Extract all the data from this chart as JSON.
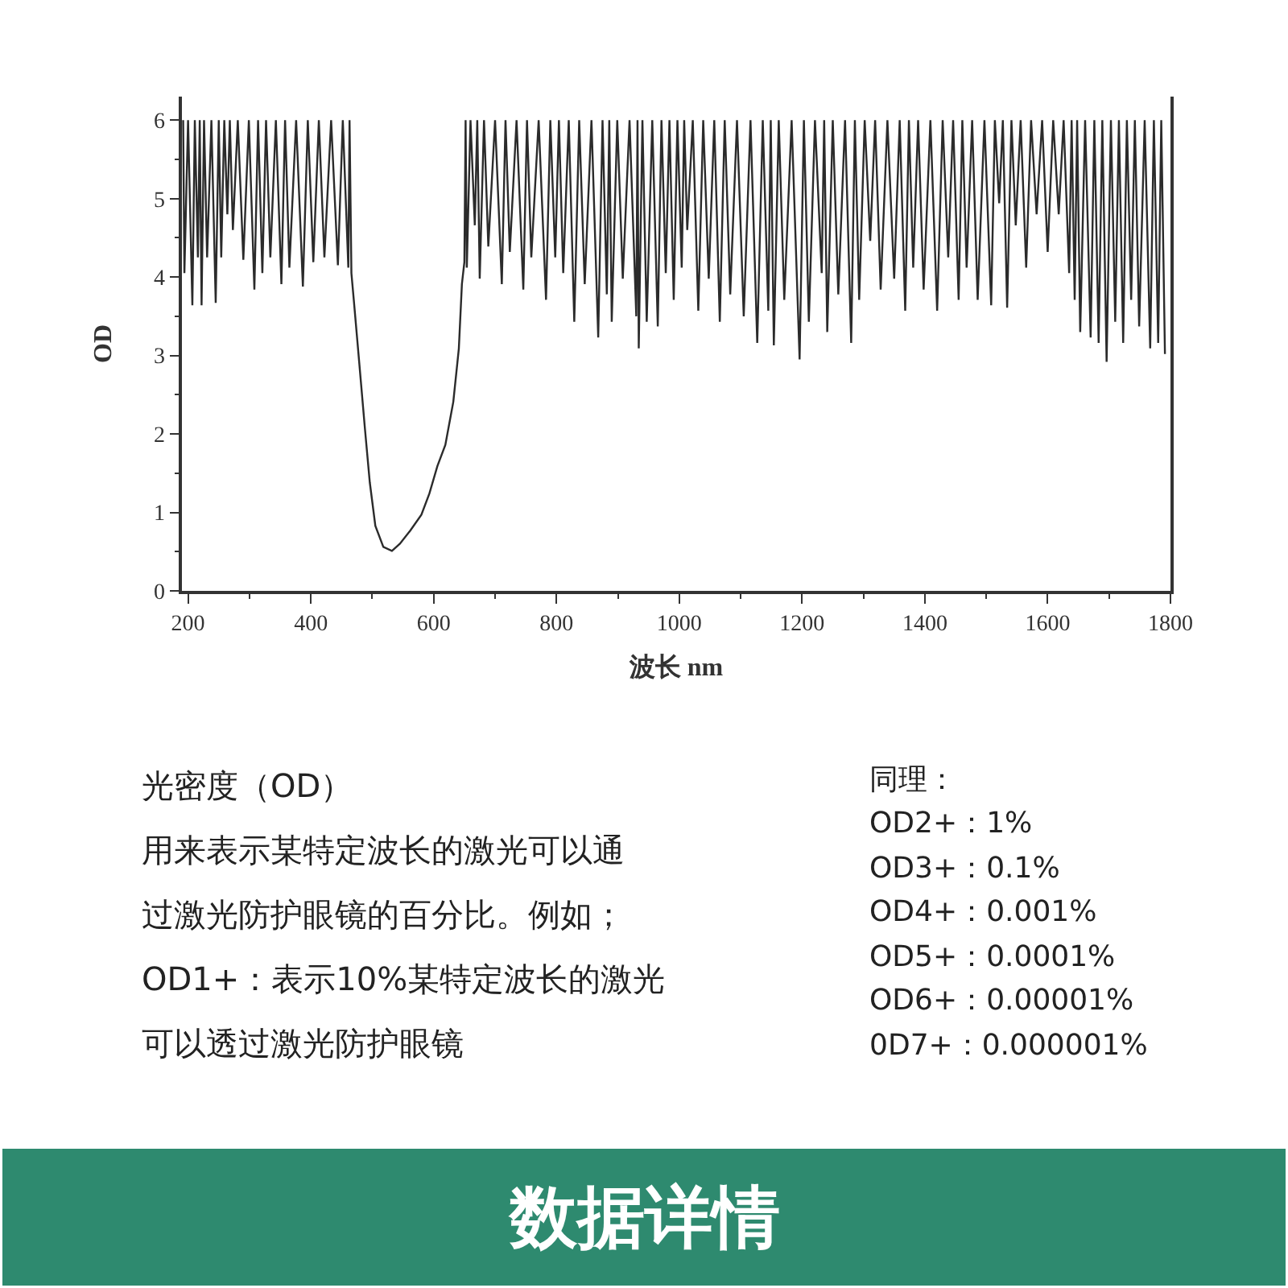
{
  "chart_data": {
    "type": "line",
    "xlabel": "波长 nm",
    "ylabel": "OD",
    "x": [
      192,
      194,
      200,
      207,
      211,
      216,
      219,
      222,
      226,
      231,
      238,
      245,
      250,
      254,
      259,
      264,
      268,
      273,
      281,
      290,
      299,
      308,
      314,
      321,
      327,
      334,
      343,
      352,
      358,
      365,
      376,
      387,
      395,
      404,
      413,
      422,
      433,
      444,
      452,
      461,
      463,
      466,
      470,
      479,
      488,
      496,
      505,
      518,
      532,
      545,
      562,
      580,
      593,
      606,
      619,
      632,
      641,
      646,
      650,
      652,
      654,
      660,
      667,
      671,
      675,
      682,
      689,
      700,
      711,
      717,
      724,
      735,
      746,
      752,
      759,
      771,
      783,
      790,
      798,
      804,
      811,
      820,
      829,
      837,
      846,
      857,
      868,
      875,
      882,
      886,
      890,
      899,
      908,
      919,
      930,
      932,
      934,
      940,
      947,
      956,
      965,
      971,
      978,
      984,
      991,
      997,
      1004,
      1008,
      1013,
      1022,
      1031,
      1039,
      1048,
      1057,
      1066,
      1074,
      1083,
      1094,
      1105,
      1116,
      1127,
      1136,
      1145,
      1149,
      1154,
      1162,
      1171,
      1183,
      1196,
      1203,
      1211,
      1221,
      1232,
      1236,
      1241,
      1250,
      1259,
      1270,
      1280,
      1286,
      1293,
      1302,
      1311,
      1319,
      1328,
      1339,
      1350,
      1359,
      1368,
      1374,
      1381,
      1389,
      1398,
      1409,
      1420,
      1429,
      1438,
      1446,
      1455,
      1461,
      1468,
      1477,
      1486,
      1497,
      1508,
      1514,
      1521,
      1527,
      1534,
      1541,
      1548,
      1556,
      1565,
      1573,
      1582,
      1591,
      1600,
      1609,
      1618,
      1626,
      1635,
      1639,
      1644,
      1648,
      1653,
      1661,
      1670,
      1676,
      1683,
      1689,
      1696,
      1703,
      1710,
      1716,
      1723,
      1729,
      1736,
      1742,
      1749,
      1758,
      1767,
      1773,
      1780,
      1785,
      1791
    ],
    "series": [
      {
        "color": "#2b2b2b",
        "values": [
          6,
          4.05,
          6,
          3.64,
          6,
          4.25,
          6,
          3.64,
          6,
          4.25,
          6,
          3.67,
          6,
          4.25,
          6,
          4.8,
          6,
          4.6,
          6,
          4.22,
          6,
          3.84,
          6,
          4.05,
          6,
          4.25,
          6,
          3.91,
          6,
          4.12,
          6,
          3.88,
          6,
          4.19,
          6,
          4.25,
          6,
          4.15,
          6,
          4.12,
          6,
          4.05,
          3.7,
          2.89,
          2.07,
          1.38,
          0.83,
          0.56,
          0.51,
          0.6,
          0.77,
          0.97,
          1.24,
          1.59,
          1.86,
          2.41,
          3.09,
          3.91,
          4.19,
          6,
          4.12,
          6,
          4.66,
          6,
          3.98,
          6,
          4.39,
          6,
          3.91,
          6,
          4.32,
          6,
          3.84,
          6,
          4.25,
          6,
          3.71,
          6,
          4.25,
          6,
          4.05,
          6,
          3.43,
          6,
          3.91,
          6,
          3.23,
          6,
          3.78,
          6,
          3.43,
          6,
          3.98,
          6,
          3.5,
          6,
          3.09,
          6,
          3.43,
          6,
          3.37,
          6,
          4.05,
          6,
          3.71,
          6,
          4.12,
          6,
          4.6,
          6,
          3.57,
          6,
          3.98,
          6,
          3.43,
          6,
          3.78,
          6,
          3.5,
          6,
          3.16,
          6,
          3.57,
          6,
          3.13,
          6,
          3.71,
          6,
          2.95,
          6,
          3.43,
          6,
          4.05,
          6,
          3.3,
          6,
          3.78,
          6,
          3.16,
          6,
          3.71,
          6,
          4.46,
          6,
          3.84,
          6,
          3.98,
          6,
          3.57,
          6,
          4.12,
          6,
          3.84,
          6,
          3.57,
          6,
          4.25,
          6,
          3.71,
          6,
          4.12,
          6,
          3.71,
          6,
          3.64,
          6,
          4.94,
          6,
          3.61,
          6,
          4.66,
          6,
          4.12,
          6,
          4.8,
          6,
          4.32,
          6,
          4.8,
          6,
          4.05,
          6,
          3.71,
          6,
          3.3,
          6,
          3.23,
          6,
          3.16,
          6,
          2.92,
          6,
          3.43,
          6,
          3.16,
          6,
          3.71,
          6,
          3.37,
          6,
          3.09,
          6,
          3.16,
          6,
          3.02
        ]
      }
    ],
    "xlim": [
      190,
      1800
    ],
    "xticks": [
      200,
      {
        "value": 300,
        "label": null
      },
      400,
      {
        "value": 500,
        "label": null
      },
      600,
      {
        "value": 700,
        "label": null
      },
      800,
      {
        "value": 900,
        "label": null
      },
      1000,
      {
        "value": 1100,
        "label": null
      },
      1200,
      {
        "value": 1300,
        "label": null
      },
      1400,
      {
        "value": 1500,
        "label": null
      },
      1600,
      {
        "value": 1700,
        "label": null
      },
      1800
    ],
    "ylim": [
      0,
      6.3
    ],
    "yticks": [
      0,
      {
        "value": 0.5,
        "label": null
      },
      1,
      {
        "value": 1.5,
        "label": null
      },
      2,
      {
        "value": 2.5,
        "label": null
      },
      3,
      {
        "value": 3.5,
        "label": null
      },
      4,
      {
        "value": 4.5,
        "label": null
      },
      5,
      {
        "value": 5.5,
        "label": null
      },
      6
    ],
    "annotations": [
      "光密度（OD）",
      "用来表示某特定波长的激光可以通",
      "过激光防护眼镜的百分比。例如；",
      "OD1+：表示10%某特定波长的激光",
      "可以透过激光防护眼镜",
      "同理：",
      "OD2+：1%",
      "OD3+：0.1%",
      "OD4+：0.001%",
      "OD5+：0.0001%",
      "OD6+：0.00001%",
      "0D7+：0.000001%",
      "数据详情"
    ]
  }
}
